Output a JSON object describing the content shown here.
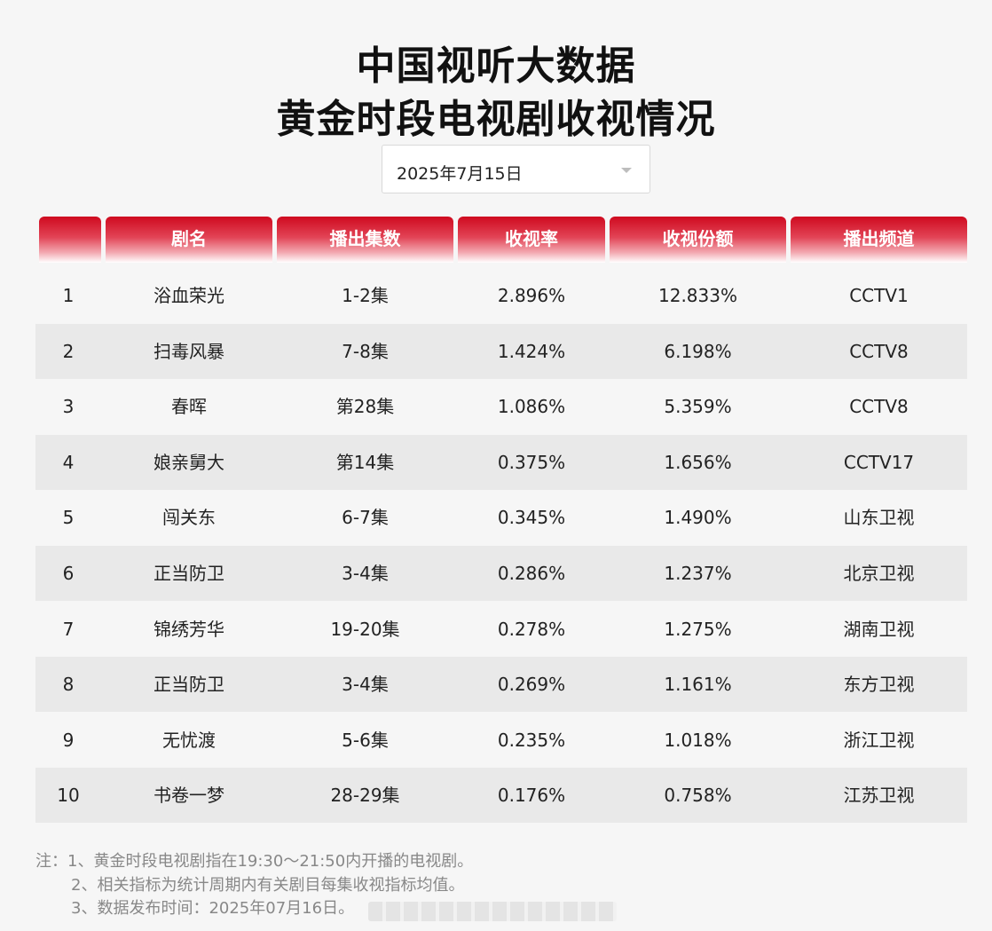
{
  "title_line1": "中国视听大数据",
  "title_line2": "黄金时段电视剧收视情况",
  "date_select": {
    "value": "2025年7月15日"
  },
  "table": {
    "columns": [
      "",
      "剧名",
      "播出集数",
      "收视率",
      "收视份额",
      "播出频道"
    ],
    "rows": [
      {
        "rank": "1",
        "name": "浴血荣光",
        "episodes": "1-2集",
        "rating": "2.896%",
        "share": "12.833%",
        "channel": "CCTV1"
      },
      {
        "rank": "2",
        "name": "扫毒风暴",
        "episodes": "7-8集",
        "rating": "1.424%",
        "share": "6.198%",
        "channel": "CCTV8"
      },
      {
        "rank": "3",
        "name": "春晖",
        "episodes": "第28集",
        "rating": "1.086%",
        "share": "5.359%",
        "channel": "CCTV8"
      },
      {
        "rank": "4",
        "name": "娘亲舅大",
        "episodes": "第14集",
        "rating": "0.375%",
        "share": "1.656%",
        "channel": "CCTV17"
      },
      {
        "rank": "5",
        "name": "闯关东",
        "episodes": "6-7集",
        "rating": "0.345%",
        "share": "1.490%",
        "channel": "山东卫视"
      },
      {
        "rank": "6",
        "name": "正当防卫",
        "episodes": "3-4集",
        "rating": "0.286%",
        "share": "1.237%",
        "channel": "北京卫视"
      },
      {
        "rank": "7",
        "name": "锦绣芳华",
        "episodes": "19-20集",
        "rating": "0.278%",
        "share": "1.275%",
        "channel": "湖南卫视"
      },
      {
        "rank": "8",
        "name": "正当防卫",
        "episodes": "3-4集",
        "rating": "0.269%",
        "share": "1.161%",
        "channel": "东方卫视"
      },
      {
        "rank": "9",
        "name": "无忧渡",
        "episodes": "5-6集",
        "rating": "0.235%",
        "share": "1.018%",
        "channel": "浙江卫视"
      },
      {
        "rank": "10",
        "name": "书卷一梦",
        "episodes": "28-29集",
        "rating": "0.176%",
        "share": "0.758%",
        "channel": "江苏卫视"
      }
    ]
  },
  "notes": [
    "注：1、黄金时段电视剧指在19:30～21:50内开播的电视剧。",
    "2、相关指标为统计周期内有关剧目每集收视指标均值。",
    "3、数据发布时间：2025年07月16日。"
  ],
  "colors": {
    "header_red": "#cf0a1f",
    "row_alt": "#e9e9e9",
    "background": "#f6f6f6"
  }
}
